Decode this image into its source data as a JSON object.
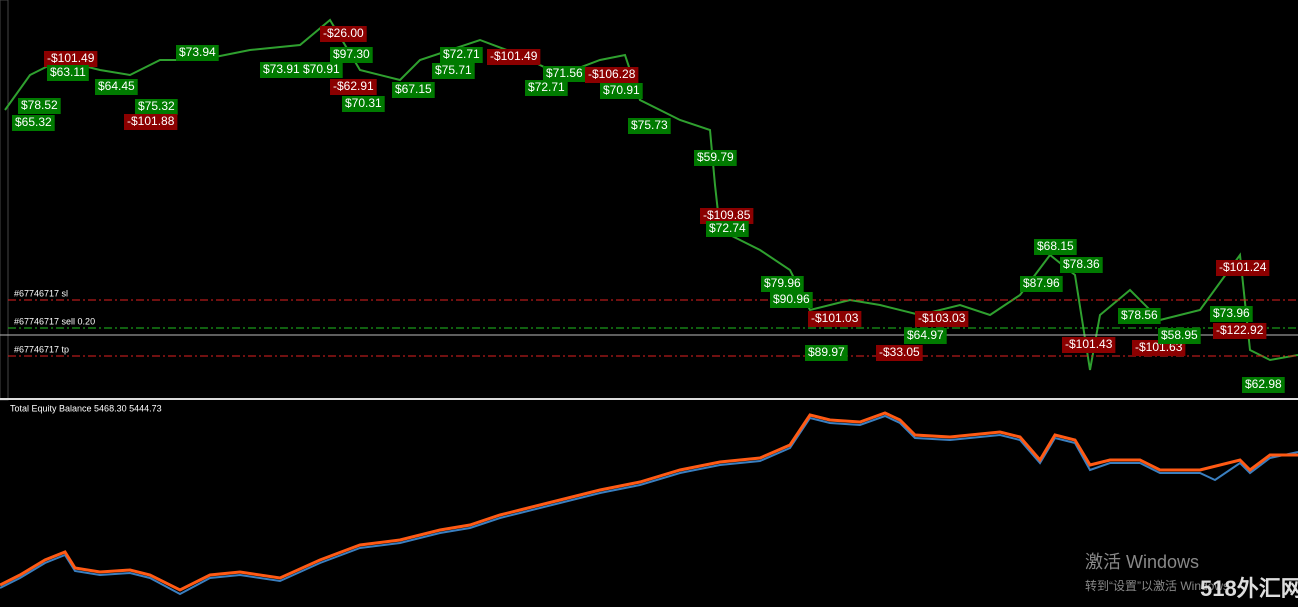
{
  "order_lines": [
    {
      "label": "#67746717 sl",
      "color": "#e02020"
    },
    {
      "label": "#67746717 sell 0.20",
      "color": "#20c020"
    },
    {
      "label": "#67746717 tp",
      "color": "#e02020"
    }
  ],
  "trade_labels": [
    {
      "text": "-$26.00",
      "color": "#8b0000"
    },
    {
      "text": "-$101.49",
      "color": "#8b0000"
    },
    {
      "text": "$63.11",
      "color": "#007a00"
    },
    {
      "text": "$78.52",
      "color": "#007a00"
    },
    {
      "text": "$65.32",
      "color": "#007a00"
    },
    {
      "text": "$64.45",
      "color": "#007a00"
    },
    {
      "text": "$75.32",
      "color": "#007a00"
    },
    {
      "text": "-$101.88",
      "color": "#8b0000"
    },
    {
      "text": "$73.94",
      "color": "#007a00"
    },
    {
      "text": "$97.30",
      "color": "#007a00"
    },
    {
      "text": "$73.91",
      "color": "#007a00"
    },
    {
      "text": "$70.91",
      "color": "#007a00"
    },
    {
      "text": "-$62.91",
      "color": "#8b0000"
    },
    {
      "text": "$70.31",
      "color": "#007a00"
    },
    {
      "text": "$67.15",
      "color": "#007a00"
    },
    {
      "text": "$72.71",
      "color": "#007a00"
    },
    {
      "text": "$75.71",
      "color": "#007a00"
    },
    {
      "text": "-$101.49",
      "color": "#8b0000"
    },
    {
      "text": "$72.71",
      "color": "#007a00"
    },
    {
      "text": "$71.56",
      "color": "#007a00"
    },
    {
      "text": "-$106.28",
      "color": "#8b0000"
    },
    {
      "text": "$70.91",
      "color": "#007a00"
    },
    {
      "text": "$75.73",
      "color": "#007a00"
    },
    {
      "text": "$59.79",
      "color": "#007a00"
    },
    {
      "text": "-$109.85",
      "color": "#8b0000"
    },
    {
      "text": "$72.74",
      "color": "#007a00"
    },
    {
      "text": "$79.96",
      "color": "#007a00"
    },
    {
      "text": "$90.96",
      "color": "#007a00"
    },
    {
      "text": "-$101.03",
      "color": "#8b0000"
    },
    {
      "text": "$89.97",
      "color": "#007a00"
    },
    {
      "text": "-$33.05",
      "color": "#8b0000"
    },
    {
      "text": "$64.97",
      "color": "#007a00"
    },
    {
      "text": "-$103.03",
      "color": "#8b0000"
    },
    {
      "text": "$68.15",
      "color": "#007a00"
    },
    {
      "text": "$78.36",
      "color": "#007a00"
    },
    {
      "text": "$87.96",
      "color": "#007a00"
    },
    {
      "text": "-$101.43",
      "color": "#8b0000"
    },
    {
      "text": "$78.56",
      "color": "#007a00"
    },
    {
      "text": "-$101.63",
      "color": "#8b0000"
    },
    {
      "text": "$58.95",
      "color": "#007a00"
    },
    {
      "text": "-$101.24",
      "color": "#8b0000"
    },
    {
      "text": "$73.96",
      "color": "#007a00"
    },
    {
      "text": "-$122.92",
      "color": "#8b0000"
    },
    {
      "text": "$62.98",
      "color": "#007a00"
    }
  ],
  "indicator": {
    "title": "Total Equity Balance 5468.30 5444.73"
  },
  "watermark": {
    "title": "激活 Windows",
    "subtitle": "转到“设置”以激活 Windows",
    "logo": "518外汇网"
  }
}
